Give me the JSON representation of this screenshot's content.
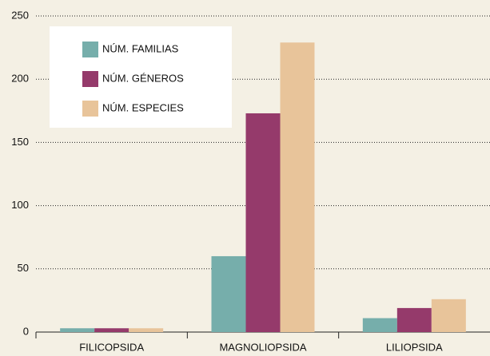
{
  "chart_data": {
    "type": "bar",
    "categories": [
      "FILICOPSIDA",
      "MAGNOLIOPSIDA",
      "LILIOPSIDA"
    ],
    "series": [
      {
        "name": "NÚM. FAMILIAS",
        "color": "#76aeab",
        "values": [
          3,
          60,
          11
        ]
      },
      {
        "name": "NÚM. GÉNEROS",
        "color": "#953a6b",
        "values": [
          3,
          173,
          19
        ]
      },
      {
        "name": "NÚM. ESPECIES",
        "color": "#e8c49a",
        "values": [
          3,
          229,
          26
        ]
      }
    ],
    "ylim": [
      0,
      250
    ],
    "yticks": [
      0,
      50,
      100,
      150,
      200,
      250
    ],
    "grid": true,
    "legend": "upper left"
  }
}
